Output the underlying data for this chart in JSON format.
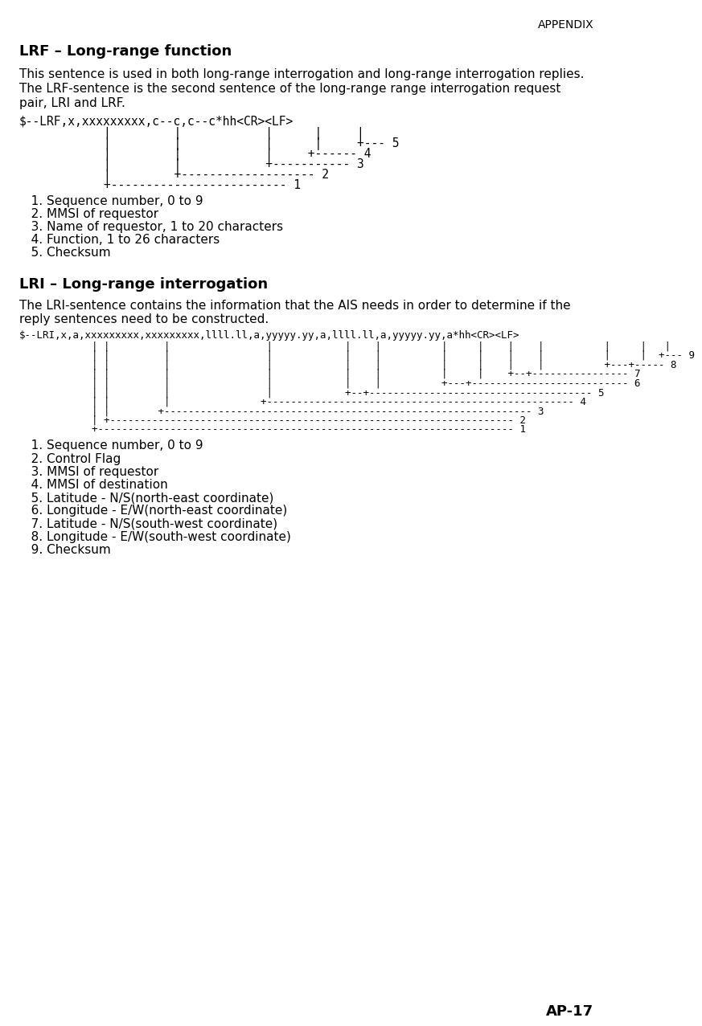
{
  "bg_color": "#ffffff",
  "text_color": "#000000",
  "appendix_label": "APPENDIX",
  "page_label": "AP-17",
  "lrf_heading": "LRF – Long-range function",
  "lrf_desc_lines": [
    "This sentence is used in both long-range interrogation and long-range interrogation replies.",
    "The LRF-sentence is the second sentence of the long-range range interrogation request",
    "pair, LRI and LRF."
  ],
  "lrf_sentence": "$--LRF,x,xxxxxxxxx,c--c,c--c*hh<CR><LF>",
  "lrf_diagram": [
    "            |         |            |      |     |",
    "            |         |            |      |     +--- 5",
    "            |         |            |     +------ 4",
    "            |         |            +----------- 3",
    "            |         +------------------- 2",
    "            +------------------------- 1"
  ],
  "lrf_items": [
    "   1. Sequence number, 0 to 9",
    "   2. MMSI of requestor",
    "   3. Name of requestor, 1 to 20 characters",
    "   4. Function, 1 to 26 characters",
    "   5. Checksum"
  ],
  "lri_heading": "LRI – Long-range interrogation",
  "lri_desc_lines": [
    "The LRI-sentence contains the information that the AIS needs in order to determine if the",
    "reply sentences need to be constructed."
  ],
  "lri_sentence": "$--LRI,x,a,xxxxxxxxx,xxxxxxxxx,llll.ll,a,yyyyy.yy,a,llll.ll,a,yyyyy.yy,a*hh<CR><LF>",
  "lri_diagram": [
    "            | |         |                |            |    |          |     |    |    |          |     |   |",
    "            | |         |                |            |    |          |     |    |    |          |     |  +--- 9",
    "            | |         |                |            |    |          |     |    |    |          +---+----- 8",
    "            | |         |                |            |    |          |     |    +--+---------------- 7",
    "            | |         |                |            |    |          +---+-------------------------- 6",
    "            | |         |                |            +--+------------------------------------- 5",
    "            | |         |               +--------------------------------------------------- 4",
    "            | |        +------------------------------------------------------------- 3",
    "            | +------------------------------------------------------------------- 2",
    "            +--------------------------------------------------------------------- 1"
  ],
  "lri_items": [
    "   1. Sequence number, 0 to 9",
    "   2. Control Flag",
    "   3. MMSI of requestor",
    "   4. MMSI of destination",
    "   5. Latitude - N/S(north-east coordinate)",
    "   6. Longitude - E/W(north-east coordinate)",
    "   7. Latitude - N/S(south-west coordinate)",
    "   8. Longitude - E/W(south-west coordinate)",
    "   9. Checksum"
  ]
}
